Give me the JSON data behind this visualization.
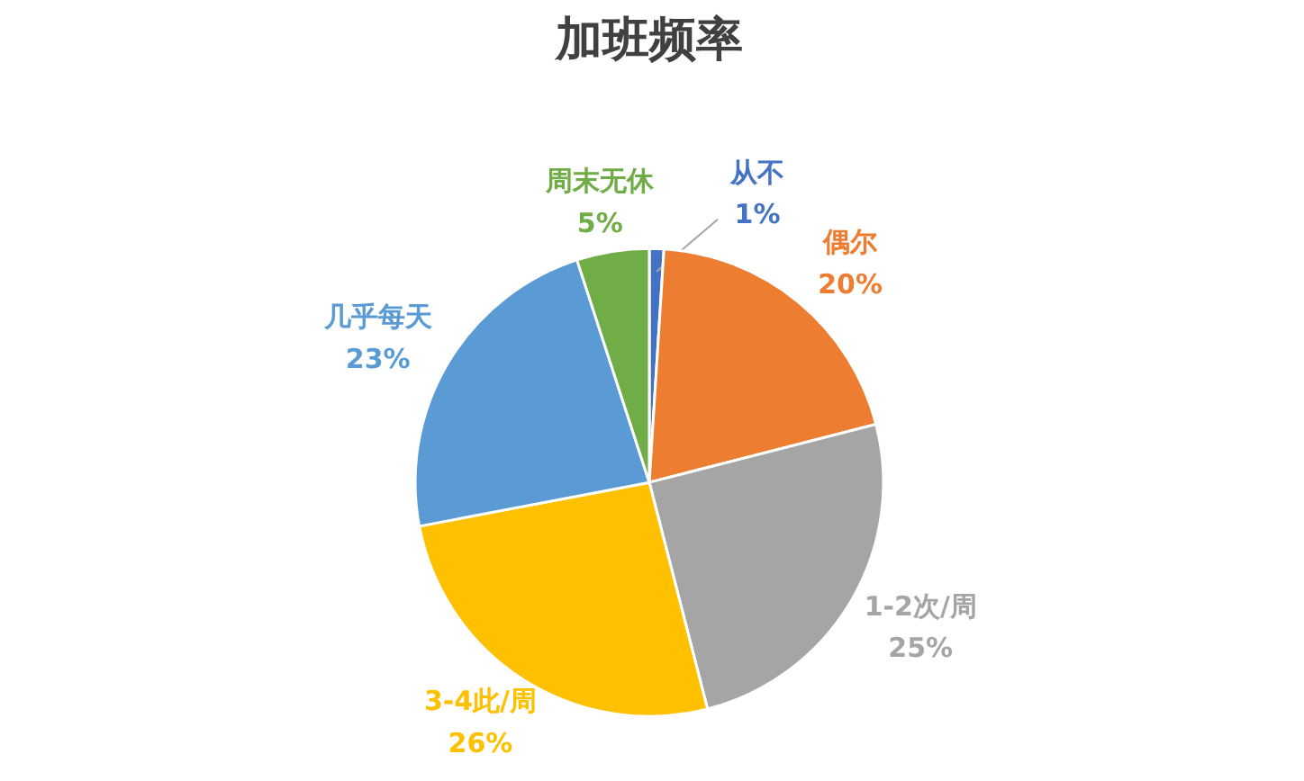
{
  "chart_data": {
    "type": "pie",
    "title": "加班频率",
    "categories": [
      "从不",
      "偶尔",
      "1-2次/周",
      "3-4此/周",
      "几乎每天",
      "周末无休"
    ],
    "values": [
      1,
      20,
      25,
      26,
      23,
      5
    ],
    "value_labels": [
      "1%",
      "20%",
      "25%",
      "26%",
      "23%",
      "5%"
    ],
    "colors": [
      "#4472c4",
      "#ed7d31",
      "#a5a5a5",
      "#ffc000",
      "#5b9bd5",
      "#70ad47"
    ]
  }
}
